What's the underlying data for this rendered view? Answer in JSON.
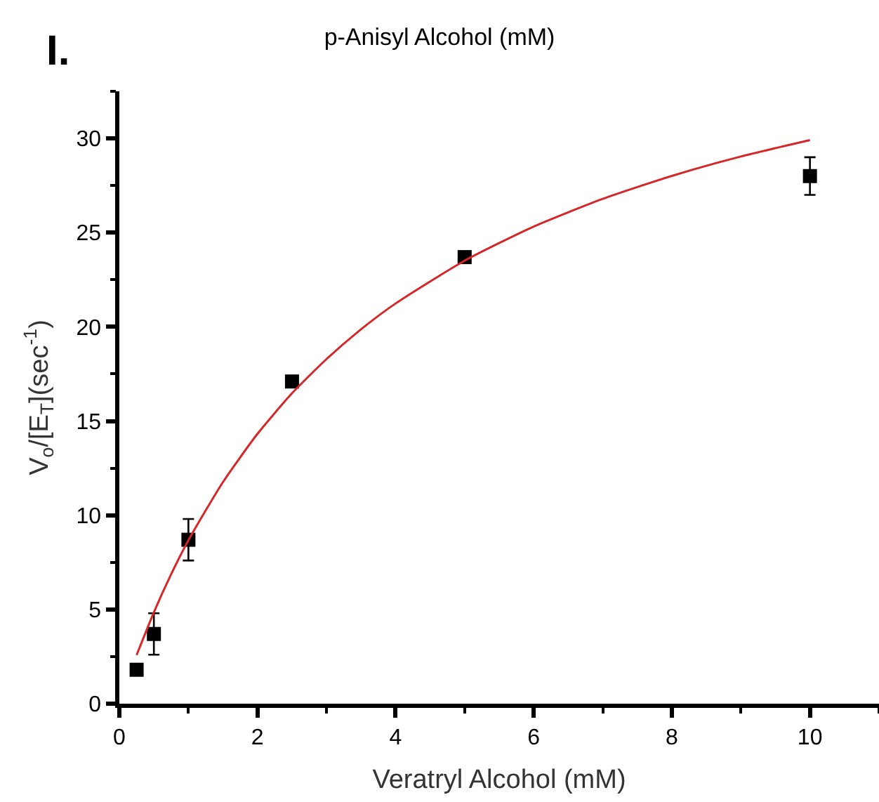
{
  "chart_data": {
    "type": "scatter",
    "title": "p-Anisyl Alcohol (mM)",
    "xlabel": "Veratryl Alcohol (mM)",
    "ylabel": "V$_{o}$/[E$_{T}$](sec$^{-1}$)",
    "annotations": [
      "I."
    ],
    "xlim": [
      0,
      11
    ],
    "xticks": [
      0,
      2,
      4,
      6,
      8,
      10
    ],
    "ylim": [
      0,
      32.5
    ],
    "yticks": [
      0,
      5,
      10,
      15,
      20,
      25,
      30
    ],
    "marker": "square",
    "series": [
      {
        "color": "#000000",
        "x": [
          0.25,
          0.5,
          1,
          2.5,
          5,
          10
        ],
        "values": [
          1.8,
          3.7,
          8.7,
          17.1,
          23.7,
          28.0
        ],
        "errors": [
          null,
          1.1,
          1.1,
          null,
          null,
          1.0
        ]
      },
      {
        "type": "line",
        "color": "#d62728",
        "marker": "none",
        "line_style": "solid",
        "x": [
          0.25,
          0.5,
          0.75,
          1,
          1.5,
          2,
          2.5,
          3,
          3.5,
          4,
          5,
          6,
          7,
          8,
          9,
          10
        ],
        "values": [
          2.58,
          4.85,
          6.87,
          8.67,
          11.76,
          14.32,
          16.47,
          18.29,
          19.87,
          21.24,
          23.51,
          25.32,
          26.79,
          28.01,
          29.04,
          29.91
        ]
      }
    ]
  }
}
